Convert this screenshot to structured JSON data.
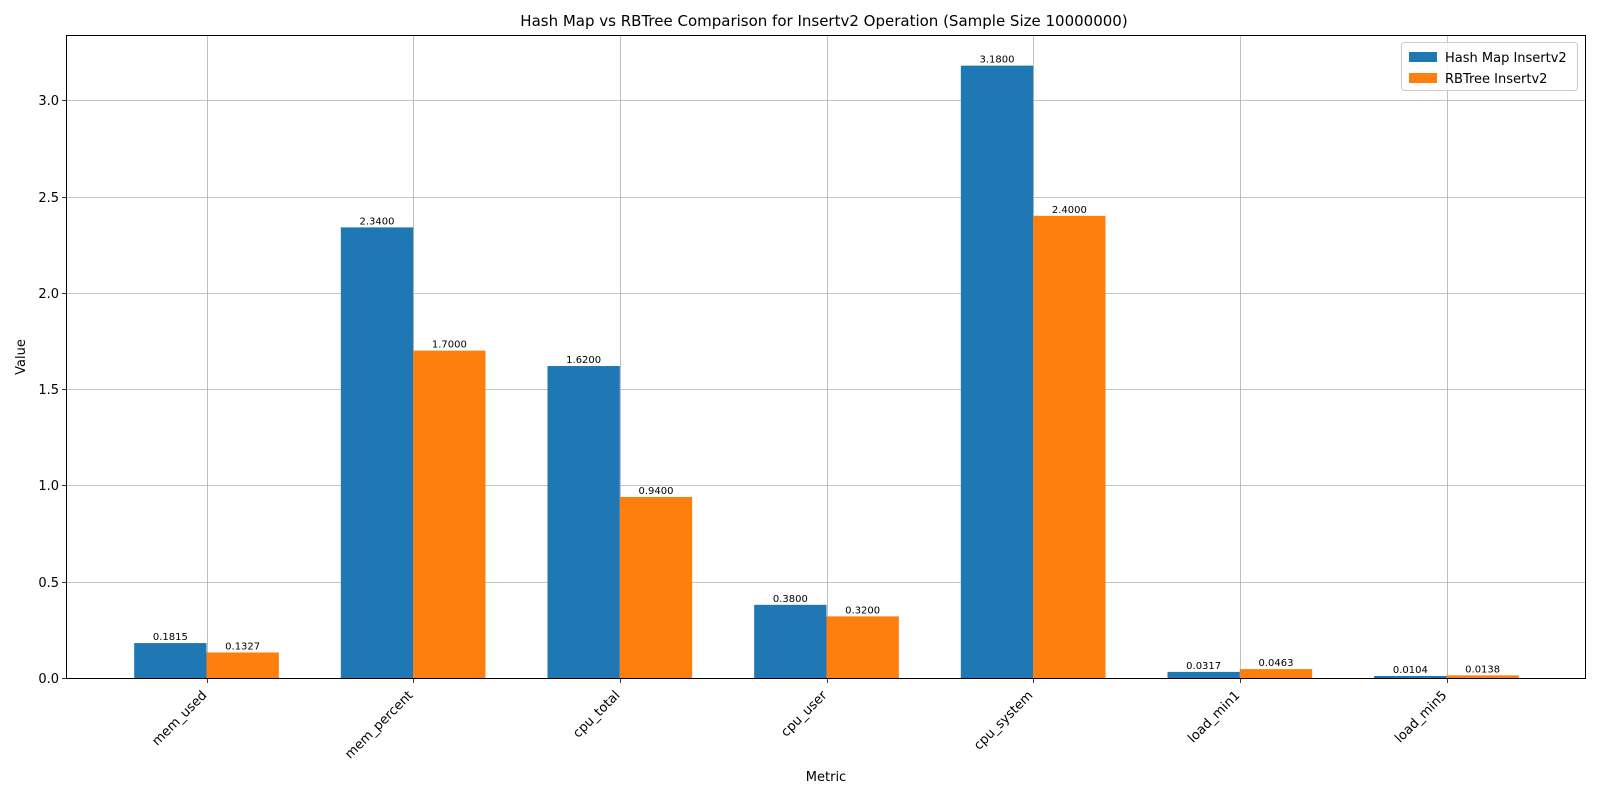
{
  "chart_data": {
    "type": "bar",
    "title": "Hash Map vs RBTree Comparison for Insertv2 Operation (Sample Size 10000000)",
    "xlabel": "Metric",
    "ylabel": "Value",
    "categories": [
      "mem_used",
      "mem_percent",
      "cpu_total",
      "cpu_user",
      "cpu_system",
      "load_min1",
      "load_min5"
    ],
    "series": [
      {
        "name": "Hash Map Insertv2",
        "color": "#1f77b4",
        "values": [
          0.1815,
          2.34,
          1.62,
          0.38,
          3.18,
          0.0317,
          0.0104
        ],
        "labels": [
          "0.1815",
          "2.3400",
          "1.6200",
          "0.3800",
          "3.1800",
          "0.0317",
          "0.0104"
        ]
      },
      {
        "name": "RBTree Insertv2",
        "color": "#ff7f0e",
        "values": [
          0.1327,
          1.7,
          0.94,
          0.32,
          2.4,
          0.0463,
          0.0138
        ],
        "labels": [
          "0.1327",
          "1.7000",
          "0.9400",
          "0.3200",
          "2.4000",
          "0.0463",
          "0.0138"
        ]
      }
    ],
    "ylim": [
      0,
      3.339
    ],
    "yticks": [
      0.0,
      0.5,
      1.0,
      1.5,
      2.0,
      2.5,
      3.0
    ],
    "ytick_labels": [
      "0.0",
      "0.5",
      "1.0",
      "1.5",
      "2.0",
      "2.5",
      "3.0"
    ],
    "grid": true,
    "legend_position": "top-right"
  }
}
